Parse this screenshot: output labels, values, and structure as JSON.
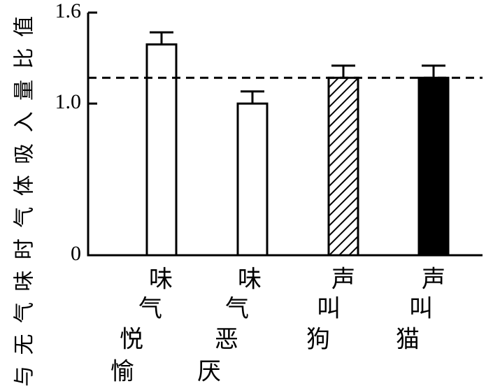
{
  "chart_data": {
    "type": "bar",
    "ylabel": "与无气味时气体吸入量比值",
    "ylim": [
      0,
      1.6
    ],
    "yticks": [
      {
        "value": 0,
        "label": "0"
      },
      {
        "value": 1.0,
        "label": "1.0"
      },
      {
        "value": 1.6,
        "label": "1.6"
      }
    ],
    "categories": [
      {
        "lines": [
          "味",
          "气",
          "悦",
          "愉"
        ],
        "value": 1.39,
        "error": 0.08,
        "fill": "white"
      },
      {
        "lines": [
          "味",
          "气",
          "恶",
          "厌"
        ],
        "value": 1.0,
        "error": 0.08,
        "fill": "white"
      },
      {
        "lines": [
          "声",
          "叫",
          "狗"
        ],
        "value": 1.17,
        "error": 0.08,
        "fill": "hatched"
      },
      {
        "lines": [
          "声",
          "叫",
          "猫"
        ],
        "value": 1.17,
        "error": 0.08,
        "fill": "black"
      }
    ],
    "reference_line": {
      "value": 1.17,
      "style": "dashed"
    },
    "grid": false,
    "legend": "none"
  }
}
